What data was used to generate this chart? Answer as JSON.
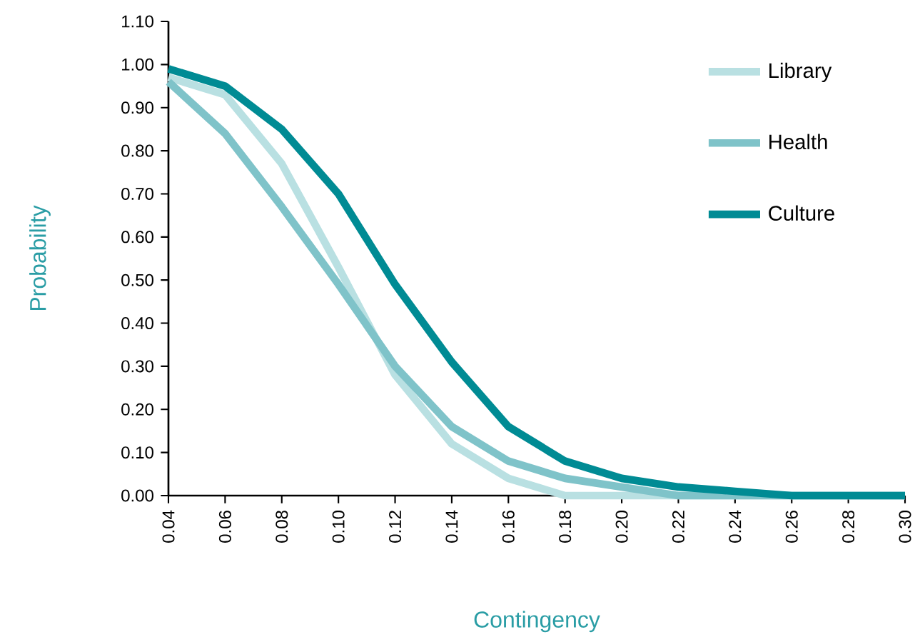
{
  "chart_data": {
    "type": "line",
    "xlabel": "Contingency",
    "ylabel": "Probability",
    "x": [
      0.04,
      0.06,
      0.08,
      0.1,
      0.12,
      0.14,
      0.16,
      0.18,
      0.2,
      0.22,
      0.24,
      0.26,
      0.28,
      0.3
    ],
    "series": [
      {
        "name": "Library",
        "color": "#b9e0e2",
        "values": [
          0.97,
          0.93,
          0.77,
          0.53,
          0.28,
          0.12,
          0.04,
          0.0,
          0.0,
          0.0,
          0.0,
          0.0,
          0.0,
          0.0
        ]
      },
      {
        "name": "Health",
        "color": "#7fc3c9",
        "values": [
          0.96,
          0.84,
          0.67,
          0.49,
          0.3,
          0.16,
          0.08,
          0.04,
          0.02,
          0.0,
          0.0,
          0.0,
          0.0,
          0.0
        ]
      },
      {
        "name": "Culture",
        "color": "#008b94",
        "values": [
          0.99,
          0.95,
          0.85,
          0.7,
          0.49,
          0.31,
          0.16,
          0.08,
          0.04,
          0.02,
          0.01,
          0.0,
          0.0,
          0.0
        ]
      }
    ],
    "xlim": [
      0.04,
      0.3
    ],
    "xticks": [
      {
        "value": 0.04,
        "label": "0.04"
      },
      {
        "value": 0.06,
        "label": "0.06"
      },
      {
        "value": 0.08,
        "label": "0.08"
      },
      {
        "value": 0.1,
        "label": "0.10"
      },
      {
        "value": 0.12,
        "label": "0.12"
      },
      {
        "value": 0.14,
        "label": "0.14"
      },
      {
        "value": 0.16,
        "label": "0.16"
      },
      {
        "value": 0.18,
        "label": "0.18"
      },
      {
        "value": 0.2,
        "label": "0.20"
      },
      {
        "value": 0.22,
        "label": "0.22"
      },
      {
        "value": 0.24,
        "label": "0.24"
      },
      {
        "value": 0.26,
        "label": "0.26"
      },
      {
        "value": 0.28,
        "label": "0.28"
      },
      {
        "value": 0.3,
        "label": "0.30"
      }
    ],
    "ylim": [
      0,
      1.1
    ],
    "yticks": [
      {
        "value": 0,
        "label": "0.00"
      },
      {
        "value": 0.1,
        "label": "0.10"
      },
      {
        "value": 0.2,
        "label": "0.20"
      },
      {
        "value": 0.3,
        "label": "0.30"
      },
      {
        "value": 0.4,
        "label": "0.40"
      },
      {
        "value": 0.5,
        "label": "0.50"
      },
      {
        "value": 0.6,
        "label": "0.60"
      },
      {
        "value": 0.7,
        "label": "0.70"
      },
      {
        "value": 0.8,
        "label": "0.80"
      },
      {
        "value": 0.9,
        "label": "0.90"
      },
      {
        "value": 1.0,
        "label": "1.00"
      },
      {
        "value": 1.1,
        "label": "1.10"
      }
    ],
    "grid": false,
    "legend": "right",
    "marker": "none",
    "line_style": "solid"
  }
}
